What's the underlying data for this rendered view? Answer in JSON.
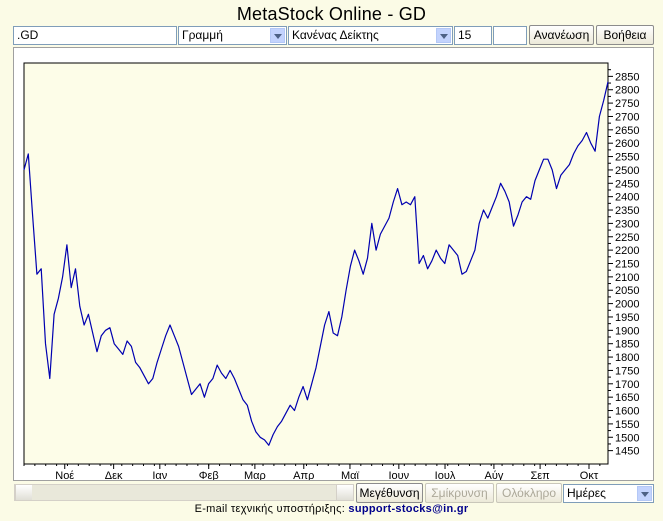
{
  "title": "MetaStock Online - GD",
  "toolbar": {
    "symbol_value": ".GD",
    "chart_type_selected": "Γραμμή",
    "indicator_selected": "Κανένας Δείκτης",
    "period_value": "15",
    "extra_value": "",
    "refresh_label": "Ανανέωση",
    "help_label": "Βοήθεια"
  },
  "zoom": {
    "zoom_in_label": "Μεγέθυνση",
    "zoom_out_label": "Σμίκρυνση",
    "full_label": "Ολόκληρο",
    "interval_selected": "Ημέρες"
  },
  "footer": {
    "label": "E-mail τεχνικής υποστήριξης:",
    "email": "support-stocks@in.gr"
  },
  "colors": {
    "line": "#0000b0",
    "plot_bg": "#fdfde8",
    "page_bg": "#fbfbe6",
    "disabled_text": "#aca899",
    "email": "#00008b"
  },
  "chart_data": {
    "type": "line",
    "title": "",
    "xlabel": "",
    "ylabel": "",
    "y_axis_side": "right",
    "ylim": [
      1400,
      2900
    ],
    "yticks": [
      1450,
      1500,
      1550,
      1600,
      1650,
      1700,
      1750,
      1800,
      1850,
      1900,
      1950,
      2000,
      2050,
      2100,
      2150,
      2200,
      2250,
      2300,
      2350,
      2400,
      2450,
      2500,
      2550,
      2600,
      2650,
      2700,
      2750,
      2800,
      2850
    ],
    "x_range": [
      0,
      215
    ],
    "x_ticks": [
      {
        "label": "Νοέ",
        "x": 15
      },
      {
        "label": "Δεκ",
        "x": 33
      },
      {
        "label": "Ιαν",
        "x": 50
      },
      {
        "label": "Φεβ",
        "x": 68
      },
      {
        "label": "Μαρ",
        "x": 85
      },
      {
        "label": "Απρ",
        "x": 103
      },
      {
        "label": "Μαϊ",
        "x": 120
      },
      {
        "label": "Ιουν",
        "x": 138
      },
      {
        "label": "Ιουλ",
        "x": 155
      },
      {
        "label": "Αύγ",
        "x": 173
      },
      {
        "label": "Σεπ",
        "x": 190
      },
      {
        "label": "Οκτ",
        "x": 208
      }
    ],
    "grid": false,
    "series": [
      {
        "values": [
          2500,
          2560,
          2330,
          2110,
          2130,
          1850,
          1720,
          1960,
          2020,
          2100,
          2220,
          2060,
          2130,
          1990,
          1920,
          1960,
          1890,
          1820,
          1880,
          1900,
          1910,
          1850,
          1830,
          1810,
          1860,
          1840,
          1780,
          1760,
          1730,
          1700,
          1720,
          1780,
          1830,
          1880,
          1920,
          1880,
          1840,
          1780,
          1720,
          1660,
          1680,
          1700,
          1650,
          1700,
          1720,
          1770,
          1740,
          1720,
          1750,
          1720,
          1680,
          1640,
          1620,
          1560,
          1520,
          1500,
          1490,
          1470,
          1510,
          1540,
          1560,
          1590,
          1620,
          1600,
          1650,
          1690,
          1640,
          1700,
          1760,
          1840,
          1920,
          1970,
          1890,
          1880,
          1950,
          2050,
          2140,
          2200,
          2160,
          2110,
          2170,
          2300,
          2200,
          2260,
          2290,
          2320,
          2380,
          2430,
          2370,
          2380,
          2370,
          2400,
          2150,
          2180,
          2130,
          2160,
          2200,
          2170,
          2150,
          2220,
          2200,
          2180,
          2110,
          2120,
          2160,
          2200,
          2300,
          2350,
          2320,
          2360,
          2400,
          2450,
          2420,
          2380,
          2290,
          2330,
          2380,
          2400,
          2390,
          2460,
          2500,
          2540,
          2540,
          2500,
          2430,
          2480,
          2500,
          2520,
          2560,
          2590,
          2610,
          2640,
          2600,
          2570,
          2700,
          2760,
          2830
        ]
      }
    ]
  }
}
